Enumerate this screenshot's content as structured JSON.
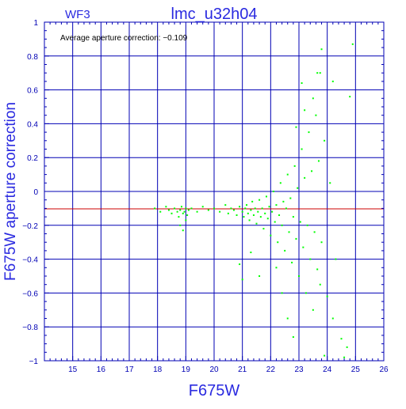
{
  "chart_data": {
    "type": "scatter",
    "panel_label": "WF3",
    "title": "lmc_u32h04",
    "annotation": "Average aperture correction: −0.109",
    "xlabel": "F675W",
    "ylabel": "F675W aperture correction",
    "xlim": [
      14,
      26
    ],
    "ylim": [
      -1,
      1
    ],
    "xticks": [
      15,
      16,
      17,
      18,
      19,
      20,
      21,
      22,
      23,
      24,
      25,
      26
    ],
    "yticks": [
      -1,
      -0.8,
      -0.6,
      -0.4,
      -0.2,
      0,
      0.2,
      0.4,
      0.6,
      0.8,
      1
    ],
    "ytick_labels": [
      "−1",
      "−0.8",
      "−0.6",
      "−0.4",
      "−0.2",
      "0",
      "0.2",
      "0.4",
      "0.6",
      "0.8",
      "1"
    ],
    "grid": true,
    "reference_line": {
      "y": -0.103,
      "color": "#cc0000"
    },
    "colors": {
      "axes": "#0000b4",
      "points": "#00ff00",
      "reference": "#cc0000",
      "text": "#2a2ae0"
    },
    "series": [
      {
        "points": [
          [
            17.9,
            -0.1
          ],
          [
            18.1,
            -0.12
          ],
          [
            18.3,
            -0.09
          ],
          [
            18.4,
            -0.11
          ],
          [
            18.5,
            -0.13
          ],
          [
            18.6,
            -0.1
          ],
          [
            18.7,
            -0.12
          ],
          [
            18.75,
            -0.15
          ],
          [
            18.8,
            -0.11
          ],
          [
            18.85,
            -0.09
          ],
          [
            18.9,
            -0.13
          ],
          [
            18.95,
            -0.12
          ],
          [
            19.0,
            -0.1
          ],
          [
            19.05,
            -0.14
          ],
          [
            19.1,
            -0.11
          ],
          [
            18.8,
            -0.2
          ],
          [
            18.9,
            -0.23
          ],
          [
            19.0,
            -0.17
          ],
          [
            19.2,
            -0.1
          ],
          [
            19.4,
            -0.12
          ],
          [
            19.6,
            -0.09
          ],
          [
            19.8,
            -0.11
          ],
          [
            20.0,
            -0.1
          ],
          [
            20.2,
            -0.12
          ],
          [
            20.4,
            -0.08
          ],
          [
            20.5,
            -0.13
          ],
          [
            20.6,
            -0.1
          ],
          [
            20.7,
            -0.11
          ],
          [
            20.8,
            -0.14
          ],
          [
            20.9,
            -0.09
          ],
          [
            21.0,
            -0.12
          ],
          [
            21.05,
            -0.15
          ],
          [
            21.1,
            -0.1
          ],
          [
            21.15,
            -0.08
          ],
          [
            21.2,
            -0.13
          ],
          [
            21.25,
            -0.17
          ],
          [
            21.3,
            -0.11
          ],
          [
            21.35,
            -0.06
          ],
          [
            21.4,
            -0.14
          ],
          [
            21.45,
            -0.1
          ],
          [
            21.5,
            -0.19
          ],
          [
            21.55,
            -0.12
          ],
          [
            21.6,
            -0.05
          ],
          [
            21.65,
            -0.15
          ],
          [
            21.7,
            -0.1
          ],
          [
            21.75,
            -0.22
          ],
          [
            21.8,
            -0.13
          ],
          [
            21.85,
            -0.03
          ],
          [
            21.9,
            -0.16
          ],
          [
            21.95,
            -0.09
          ],
          [
            22.0,
            -0.26
          ],
          [
            22.05,
            -0.12
          ],
          [
            22.1,
            0.0
          ],
          [
            22.15,
            -0.18
          ],
          [
            22.2,
            -0.08
          ],
          [
            22.25,
            -0.3
          ],
          [
            22.3,
            -0.14
          ],
          [
            22.35,
            0.05
          ],
          [
            22.4,
            -0.2
          ],
          [
            22.45,
            -0.06
          ],
          [
            22.5,
            -0.35
          ],
          [
            22.55,
            -0.1
          ],
          [
            22.6,
            0.1
          ],
          [
            22.65,
            -0.24
          ],
          [
            22.7,
            -0.04
          ],
          [
            22.75,
            -0.42
          ],
          [
            22.8,
            -0.15
          ],
          [
            22.85,
            0.15
          ],
          [
            22.9,
            -0.28
          ],
          [
            22.95,
            0.02
          ],
          [
            23.0,
            -0.5
          ],
          [
            23.05,
            -0.18
          ],
          [
            23.1,
            0.25
          ],
          [
            23.15,
            -0.33
          ],
          [
            23.2,
            0.08
          ],
          [
            23.25,
            -0.6
          ],
          [
            23.3,
            -0.2
          ],
          [
            23.35,
            0.35
          ],
          [
            23.4,
            -0.4
          ],
          [
            23.45,
            0.12
          ],
          [
            23.5,
            -0.7
          ],
          [
            23.55,
            -0.24
          ],
          [
            23.6,
            0.45
          ],
          [
            23.65,
            -0.46
          ],
          [
            23.7,
            0.18
          ],
          [
            23.75,
            -0.55
          ],
          [
            23.8,
            -0.3
          ],
          [
            23.9,
            0.3
          ],
          [
            24.0,
            -0.62
          ],
          [
            24.1,
            0.05
          ],
          [
            24.2,
            -0.75
          ],
          [
            24.3,
            -0.4
          ],
          [
            24.5,
            -0.87
          ],
          [
            24.7,
            -0.92
          ],
          [
            24.9,
            0.87
          ],
          [
            24.8,
            0.56
          ],
          [
            23.65,
            0.7
          ],
          [
            23.75,
            0.7
          ],
          [
            23.8,
            0.84
          ],
          [
            24.2,
            0.65
          ],
          [
            23.1,
            0.64
          ],
          [
            23.5,
            0.55
          ],
          [
            22.9,
            0.38
          ],
          [
            23.2,
            0.48
          ],
          [
            22.4,
            -0.6
          ],
          [
            22.6,
            -0.75
          ],
          [
            22.8,
            -0.86
          ],
          [
            21.6,
            -0.5
          ],
          [
            21.0,
            -0.52
          ],
          [
            20.9,
            -0.43
          ],
          [
            21.3,
            -0.36
          ],
          [
            22.2,
            -0.45
          ],
          [
            23.9,
            -0.97
          ],
          [
            24.6,
            -0.98
          ]
        ]
      }
    ]
  }
}
